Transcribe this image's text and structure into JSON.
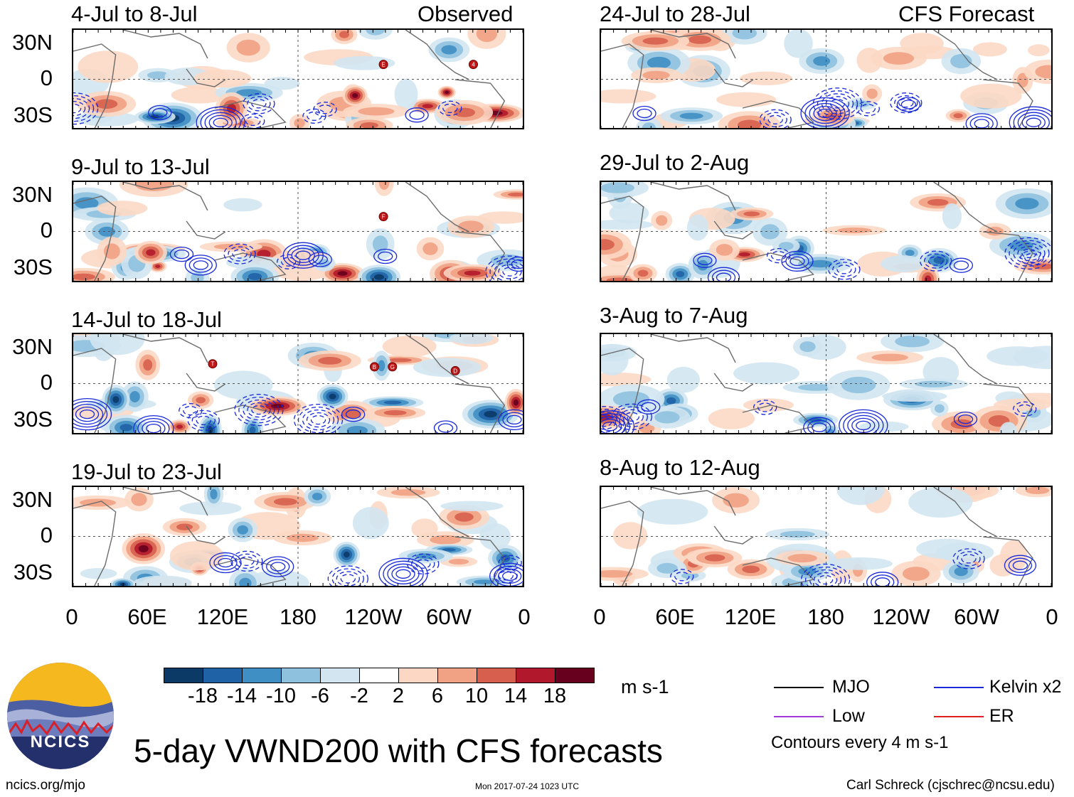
{
  "observed_label": "Observed",
  "forecast_label": "CFS Forecast",
  "panels_left": [
    {
      "title": "4-Jul to 8-Jul"
    },
    {
      "title": "9-Jul to 13-Jul"
    },
    {
      "title": "14-Jul to 18-Jul"
    },
    {
      "title": "19-Jul to 23-Jul"
    }
  ],
  "panels_right": [
    {
      "title": "24-Jul to 28-Jul"
    },
    {
      "title": "29-Jul to 2-Aug"
    },
    {
      "title": "3-Aug to 7-Aug"
    },
    {
      "title": "8-Aug to 12-Aug"
    }
  ],
  "lat_labels": [
    "30N",
    "0",
    "30S"
  ],
  "lon_labels": [
    "0",
    "60E",
    "120E",
    "180",
    "120W",
    "60W",
    "0"
  ],
  "storm_markers": [
    {
      "panel": 0,
      "letter": "E"
    },
    {
      "panel": 0,
      "letter": "4"
    },
    {
      "panel": 1,
      "letter": "F"
    },
    {
      "panel": 2,
      "letter": "T"
    },
    {
      "panel": 2,
      "letter": "B"
    },
    {
      "panel": 2,
      "letter": "G"
    },
    {
      "panel": 2,
      "letter": "D"
    }
  ],
  "colorbar": {
    "unit": "m s-1",
    "labels": [
      "-18",
      "-14",
      "-10",
      "-6",
      "-2",
      "2",
      "6",
      "10",
      "14",
      "18"
    ],
    "colors": [
      "#0b3a66",
      "#1f62a6",
      "#3f8ec4",
      "#8ec1de",
      "#d2e5f1",
      "#ffffff",
      "#fcd8c4",
      "#f1a184",
      "#d6604d",
      "#b2182b",
      "#67001f"
    ]
  },
  "legend": {
    "items": [
      {
        "label": "MJO",
        "color": "#000000"
      },
      {
        "label": "Kelvin x2",
        "color": "#1a2ad8"
      },
      {
        "label": "Low",
        "color": "#a23bd6"
      },
      {
        "label": "ER",
        "color": "#e02020"
      }
    ],
    "contours_note": "Contours every 4 m s-1"
  },
  "logo_text": "NCICS",
  "main_title": "5-day VWND200 with CFS forecasts",
  "footer": {
    "url": "ncics.org/mjo",
    "timestamp": "Mon 2017-07-24 1023 UTC",
    "author": "Carl Schreck (cjschrec@ncsu.edu)"
  }
}
